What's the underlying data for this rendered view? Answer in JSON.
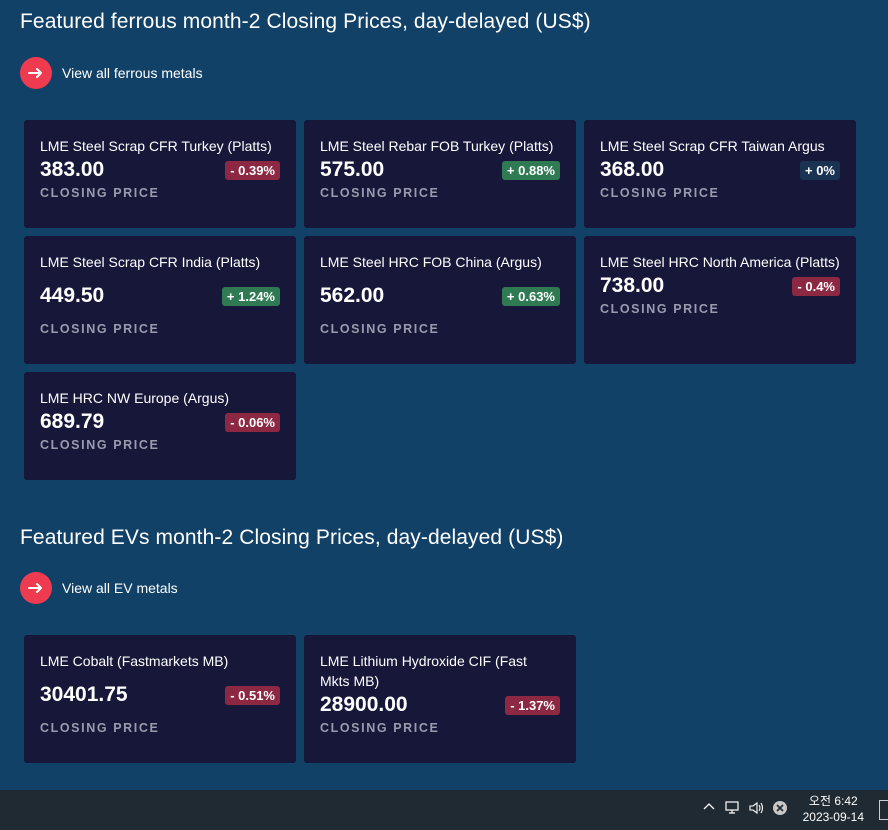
{
  "ferrous": {
    "title": "Featured ferrous month-2 Closing Prices, day-delayed (US$)",
    "view_all": "View all ferrous metals",
    "cards": [
      {
        "name": "LME Steel Scrap CFR Turkey (Platts)",
        "price": "383.00",
        "change": "- 0.39%",
        "direction": "down",
        "label": "CLOSING PRICE"
      },
      {
        "name": "LME Steel Rebar FOB Turkey (Platts)",
        "price": "575.00",
        "change": "+ 0.88%",
        "direction": "up",
        "label": "CLOSING PRICE"
      },
      {
        "name": "LME Steel Scrap CFR Taiwan Argus",
        "price": "368.00",
        "change": "+ 0%",
        "direction": "flat",
        "label": "CLOSING PRICE"
      },
      {
        "name": "LME Steel Scrap CFR India (Platts)",
        "price": "449.50",
        "change": "+ 1.24%",
        "direction": "up",
        "label": "CLOSING PRICE"
      },
      {
        "name": "LME Steel HRC FOB China (Argus)",
        "price": "562.00",
        "change": "+ 0.63%",
        "direction": "up",
        "label": "CLOSING PRICE"
      },
      {
        "name": "LME Steel HRC North America (Platts)",
        "price": "738.00",
        "change": "- 0.4%",
        "direction": "down",
        "label": "CLOSING PRICE"
      },
      {
        "name": "LME HRC NW Europe (Argus)",
        "price": "689.79",
        "change": "- 0.06%",
        "direction": "down",
        "label": "CLOSING PRICE"
      }
    ]
  },
  "evs": {
    "title": "Featured EVs month-2 Closing Prices, day-delayed (US$)",
    "view_all": "View all EV metals",
    "cards": [
      {
        "name": "LME Cobalt (Fastmarkets MB)",
        "price": "30401.75",
        "change": "- 0.51%",
        "direction": "down",
        "label": "CLOSING PRICE"
      },
      {
        "name": "LME Lithium Hydroxide CIF (Fast Mkts MB)",
        "price": "28900.00",
        "change": "- 1.37%",
        "direction": "down",
        "label": "CLOSING PRICE"
      }
    ]
  },
  "taskbar": {
    "time": "오전 6:42",
    "date": "2023-09-14"
  },
  "colors": {
    "background": "#124168",
    "card": "#17173a",
    "accent_red": "#ef3b4f",
    "badge_down": "#8c2841",
    "badge_up": "#2f7a53",
    "badge_flat": "#1a3352"
  }
}
